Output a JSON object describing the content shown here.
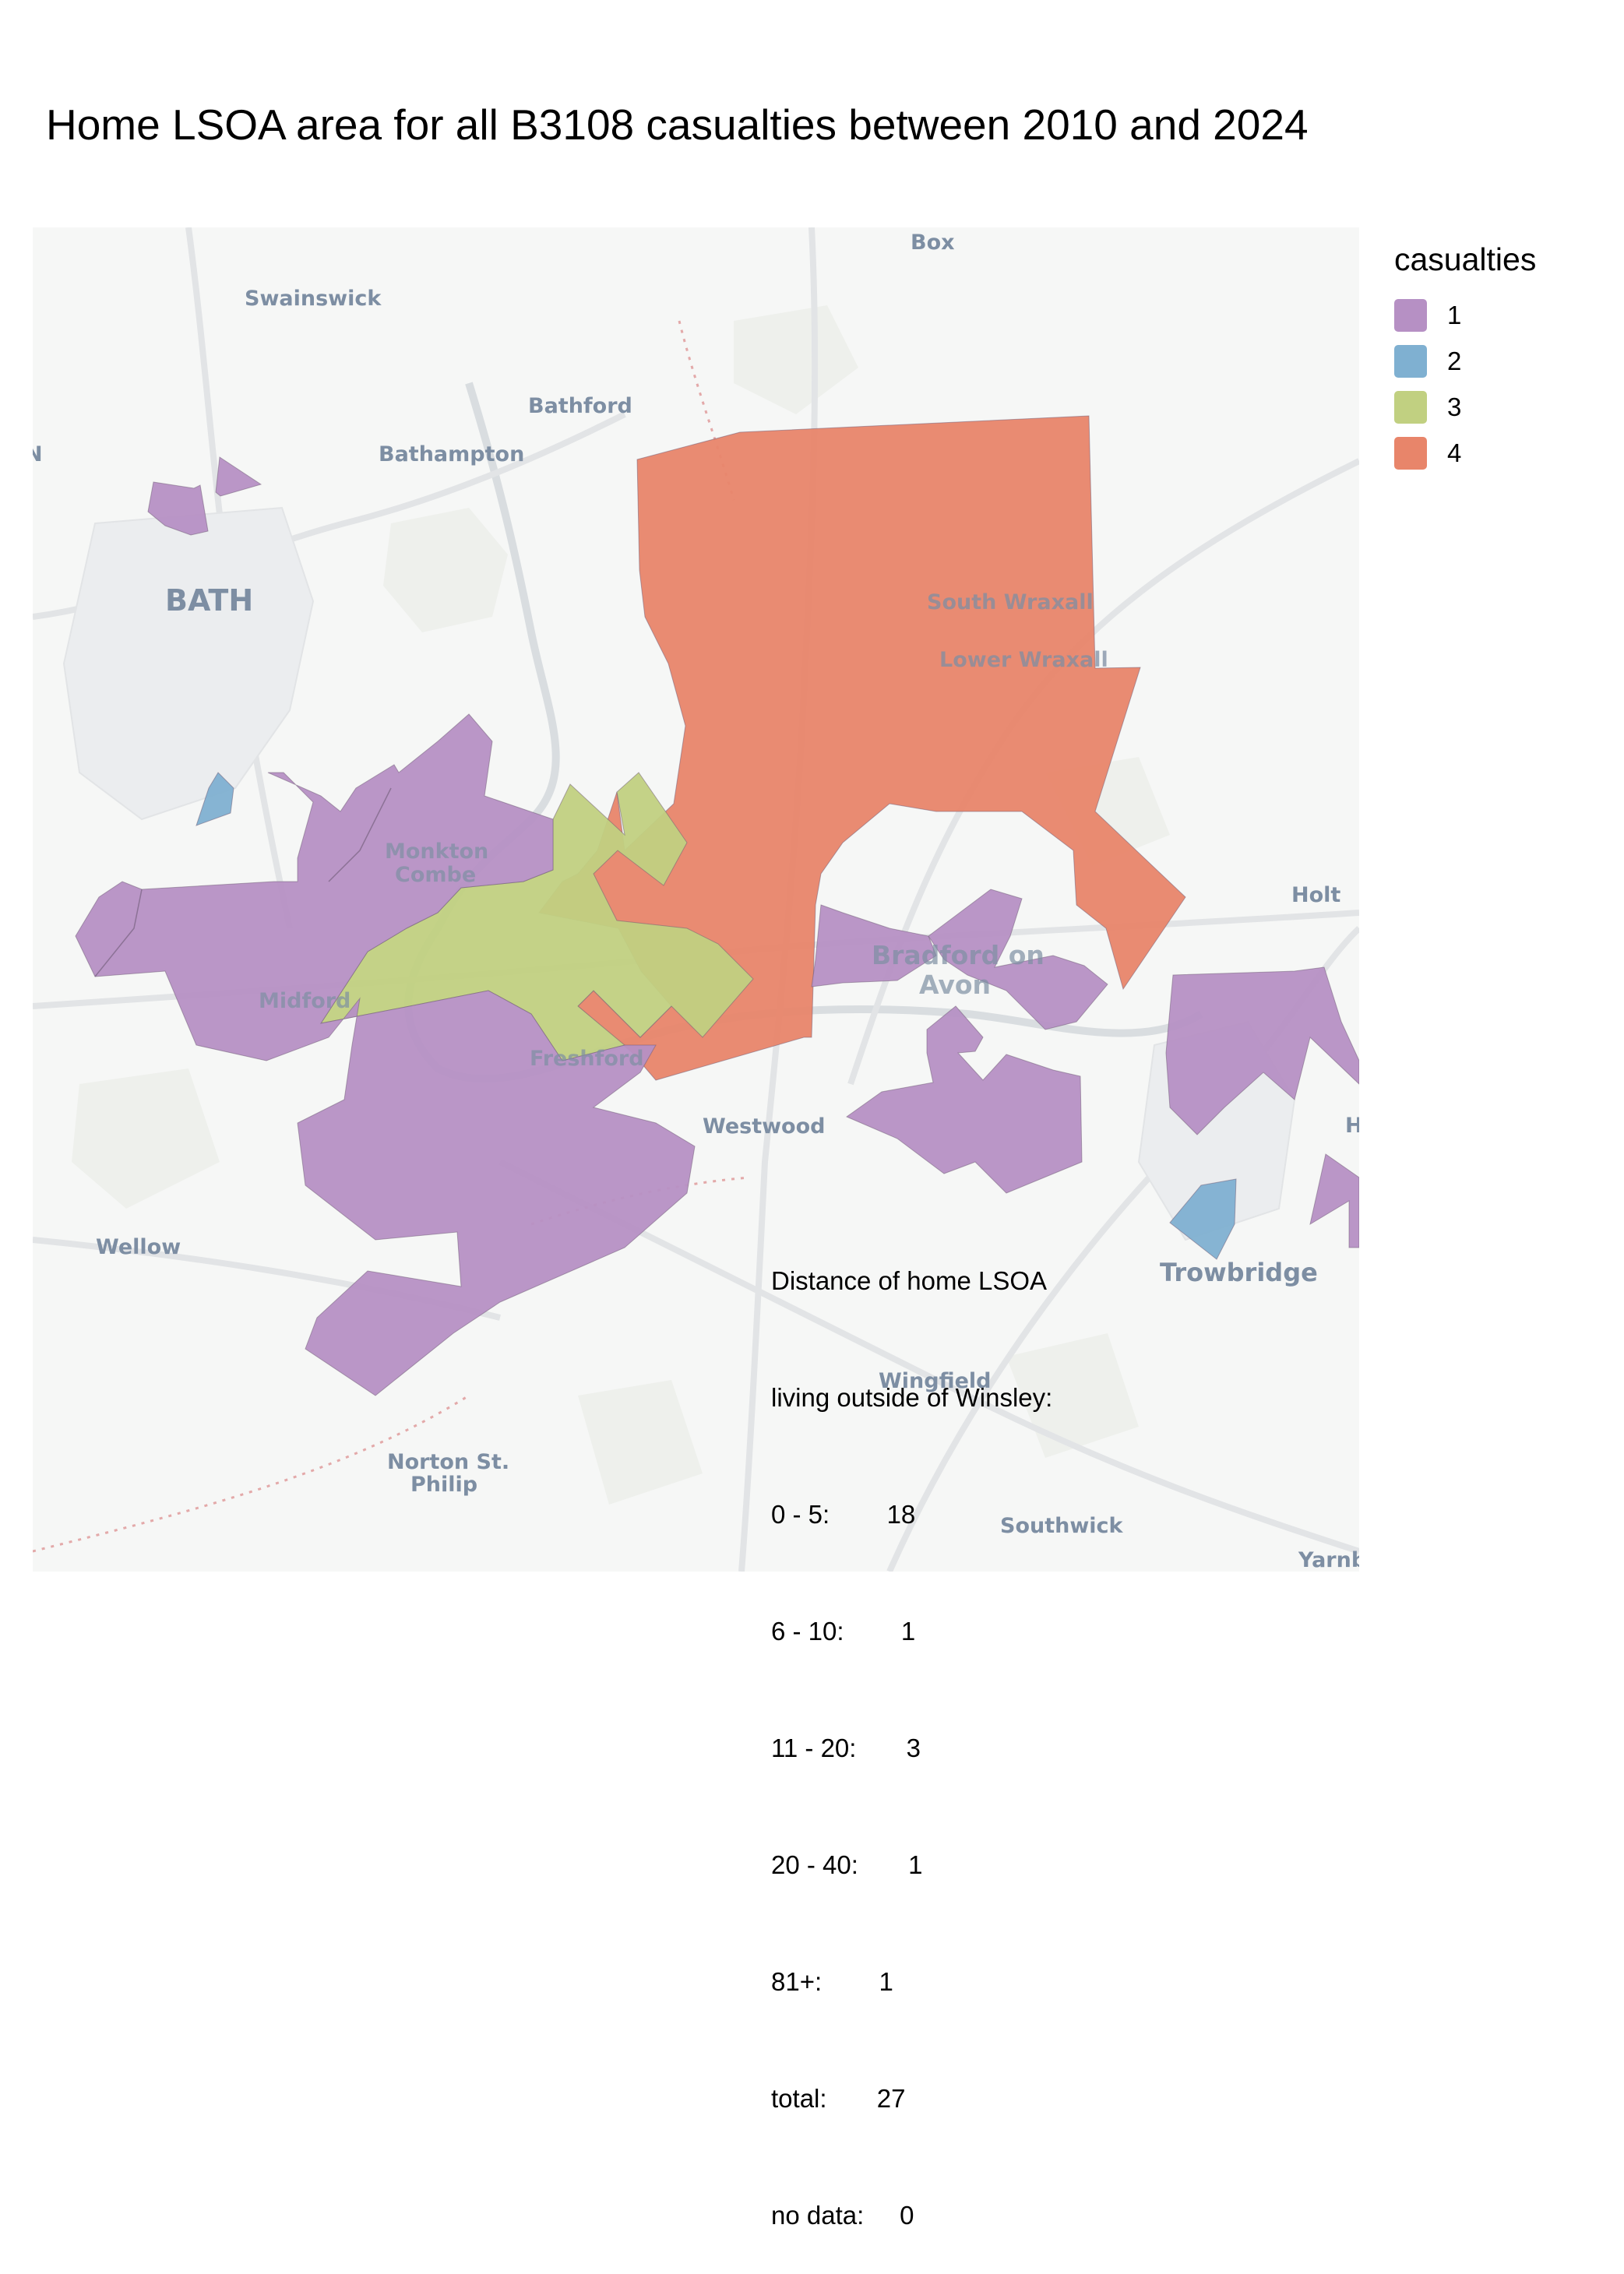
{
  "title": "Home LSOA area for all B3108 casualties between 2010 and 2024",
  "legend": {
    "title": "casualties",
    "items": [
      {
        "label": "1",
        "color": "#b690c4"
      },
      {
        "label": "2",
        "color": "#7fb0d1"
      },
      {
        "label": "3",
        "color": "#c1d081"
      },
      {
        "label": "4",
        "color": "#e8856a"
      }
    ]
  },
  "place_labels": {
    "box": "Box",
    "swainswick": "Swainswick",
    "bathford": "Bathford",
    "bathampton": "Bathampton",
    "bath": "BATH",
    "south_wraxall": "South Wraxall",
    "lower_wraxall": "Lower Wraxall",
    "monkton_combe_1": "Monkton",
    "monkton_combe_2": "Combe",
    "holt": "Holt",
    "bradford_1": "Bradford on",
    "bradford_2": "Avon",
    "midford": "Midford",
    "freshford": "Freshford",
    "westwood": "Westwood",
    "wellow": "Wellow",
    "trowbridge": "Trowbridge",
    "wingfield": "Wingfield",
    "norton_1": "Norton St.",
    "norton_2": "Philip",
    "southwick": "Southwick",
    "yarnbrook_partial": "Yarnb",
    "hilperton_partial": "H",
    "edge_partial": "N"
  },
  "annotation": {
    "line1": "Distance of home LSOA",
    "line2": "living outside of Winsley:",
    "rows": [
      {
        "label": "0 - 5:",
        "value": "18"
      },
      {
        "label": "6 - 10:",
        "value": "1"
      },
      {
        "label": "11 - 20:",
        "value": "3"
      },
      {
        "label": "20 - 40:",
        "value": "1"
      },
      {
        "label": "81+:",
        "value": "1"
      },
      {
        "label": "total:",
        "value": "27"
      },
      {
        "label": "no data:",
        "value": "0"
      }
    ]
  }
}
